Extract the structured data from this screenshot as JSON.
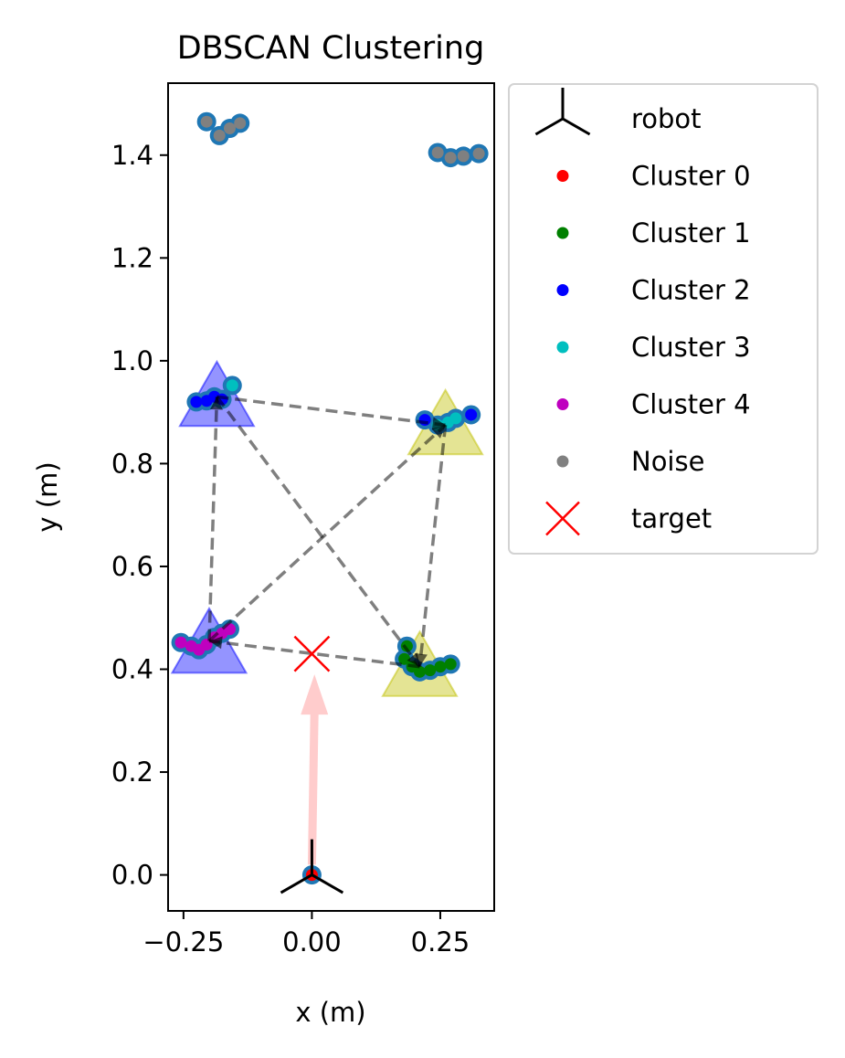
{
  "chart_data": {
    "type": "scatter",
    "title": "DBSCAN Clustering",
    "xlabel": "x (m)",
    "ylabel": "y (m)",
    "xlim": [
      -0.28,
      0.355
    ],
    "ylim": [
      -0.07,
      1.54
    ],
    "xticks": [
      -0.25,
      0.0,
      0.25
    ],
    "xtick_labels": [
      "−0.25",
      "0.00",
      "0.25"
    ],
    "yticks": [
      0.0,
      0.2,
      0.4,
      0.6,
      0.8,
      1.0,
      1.2,
      1.4
    ],
    "ytick_labels": [
      "0.0",
      "0.2",
      "0.4",
      "0.6",
      "0.8",
      "1.0",
      "1.2",
      "1.4"
    ],
    "grid": false,
    "legend_position": "outside-right",
    "legend": [
      {
        "label": "robot",
        "marker": "tri_down",
        "color": "#000000"
      },
      {
        "label": "Cluster 0",
        "marker": "dot",
        "color": "#ff0000"
      },
      {
        "label": "Cluster 1",
        "marker": "dot",
        "color": "#008000"
      },
      {
        "label": "Cluster 2",
        "marker": "dot",
        "color": "#0000ff"
      },
      {
        "label": "Cluster 3",
        "marker": "dot",
        "color": "#00bfbf"
      },
      {
        "label": "Cluster 4",
        "marker": "dot",
        "color": "#bf00bf"
      },
      {
        "label": "Noise",
        "marker": "dot",
        "color": "#808080"
      },
      {
        "label": "target",
        "marker": "x",
        "color": "#ff0000"
      }
    ],
    "raw_points": [
      [
        0.0,
        0.0
      ],
      [
        -0.255,
        0.452
      ],
      [
        -0.235,
        0.445
      ],
      [
        -0.22,
        0.438
      ],
      [
        -0.205,
        0.448
      ],
      [
        -0.19,
        0.462
      ],
      [
        -0.175,
        0.47
      ],
      [
        -0.16,
        0.478
      ],
      [
        -0.225,
        0.92
      ],
      [
        -0.205,
        0.922
      ],
      [
        -0.19,
        0.93
      ],
      [
        -0.175,
        0.925
      ],
      [
        -0.155,
        0.952
      ],
      [
        0.18,
        0.42
      ],
      [
        0.185,
        0.445
      ],
      [
        0.195,
        0.405
      ],
      [
        0.21,
        0.395
      ],
      [
        0.23,
        0.398
      ],
      [
        0.25,
        0.405
      ],
      [
        0.27,
        0.41
      ],
      [
        0.22,
        0.885
      ],
      [
        0.245,
        0.875
      ],
      [
        0.265,
        0.88
      ],
      [
        0.28,
        0.888
      ],
      [
        0.31,
        0.895
      ],
      [
        -0.205,
        1.465
      ],
      [
        -0.18,
        1.438
      ],
      [
        -0.16,
        1.452
      ],
      [
        -0.14,
        1.462
      ],
      [
        0.245,
        1.405
      ],
      [
        0.27,
        1.395
      ],
      [
        0.295,
        1.398
      ],
      [
        0.325,
        1.403
      ]
    ],
    "clusters": [
      {
        "name": "Cluster 0",
        "color": "#ff0000",
        "points": [
          [
            0.0,
            0.0
          ]
        ]
      },
      {
        "name": "Cluster 1",
        "color": "#008000",
        "points": [
          [
            0.18,
            0.42
          ],
          [
            0.185,
            0.445
          ],
          [
            0.195,
            0.405
          ],
          [
            0.21,
            0.395
          ],
          [
            0.23,
            0.398
          ],
          [
            0.25,
            0.405
          ],
          [
            0.27,
            0.41
          ]
        ]
      },
      {
        "name": "Cluster 2",
        "color": "#0000ff",
        "points": [
          [
            -0.225,
            0.92
          ],
          [
            -0.205,
            0.922
          ],
          [
            -0.19,
            0.93
          ],
          [
            -0.175,
            0.925
          ],
          [
            0.22,
            0.885
          ],
          [
            0.31,
            0.895
          ]
        ]
      },
      {
        "name": "Cluster 3",
        "color": "#00bfbf",
        "points": [
          [
            -0.155,
            0.952
          ],
          [
            0.245,
            0.875
          ],
          [
            0.265,
            0.88
          ],
          [
            0.28,
            0.888
          ]
        ]
      },
      {
        "name": "Cluster 4",
        "color": "#bf00bf",
        "points": [
          [
            -0.255,
            0.452
          ],
          [
            -0.235,
            0.445
          ],
          [
            -0.22,
            0.438
          ],
          [
            -0.205,
            0.448
          ],
          [
            -0.19,
            0.462
          ],
          [
            -0.175,
            0.47
          ],
          [
            -0.16,
            0.478
          ]
        ]
      },
      {
        "name": "Noise",
        "color": "#808080",
        "points": [
          [
            -0.205,
            1.465
          ],
          [
            -0.18,
            1.438
          ],
          [
            -0.16,
            1.452
          ],
          [
            -0.14,
            1.462
          ],
          [
            0.245,
            1.405
          ],
          [
            0.27,
            1.395
          ],
          [
            0.295,
            1.398
          ],
          [
            0.325,
            1.403
          ]
        ]
      }
    ],
    "cluster_triangles": [
      {
        "x": -0.185,
        "y": 0.92,
        "color": "#0000ff"
      },
      {
        "x": 0.26,
        "y": 0.865,
        "color": "#bfbf00"
      },
      {
        "x": -0.2,
        "y": 0.44,
        "color": "#0000ff"
      },
      {
        "x": 0.21,
        "y": 0.395,
        "color": "#bfbf00"
      }
    ],
    "path_segments": [
      [
        [
          -0.2,
          0.455
        ],
        [
          -0.185,
          0.93
        ]
      ],
      [
        [
          -0.185,
          0.93
        ],
        [
          0.26,
          0.875
        ]
      ],
      [
        [
          0.26,
          0.875
        ],
        [
          0.21,
          0.405
        ]
      ],
      [
        [
          0.21,
          0.405
        ],
        [
          -0.2,
          0.455
        ]
      ],
      [
        [
          -0.2,
          0.455
        ],
        [
          0.26,
          0.875
        ]
      ],
      [
        [
          -0.185,
          0.93
        ],
        [
          0.21,
          0.405
        ]
      ]
    ],
    "target": {
      "x": 0.0,
      "y": 0.43,
      "color": "#ff0000"
    },
    "robot": {
      "x": 0.0,
      "y": 0.0,
      "color": "#000000"
    },
    "heading_arrow": {
      "from": [
        0.0,
        0.02
      ],
      "to": [
        0.005,
        0.39
      ],
      "color": "#ffcccc"
    }
  }
}
